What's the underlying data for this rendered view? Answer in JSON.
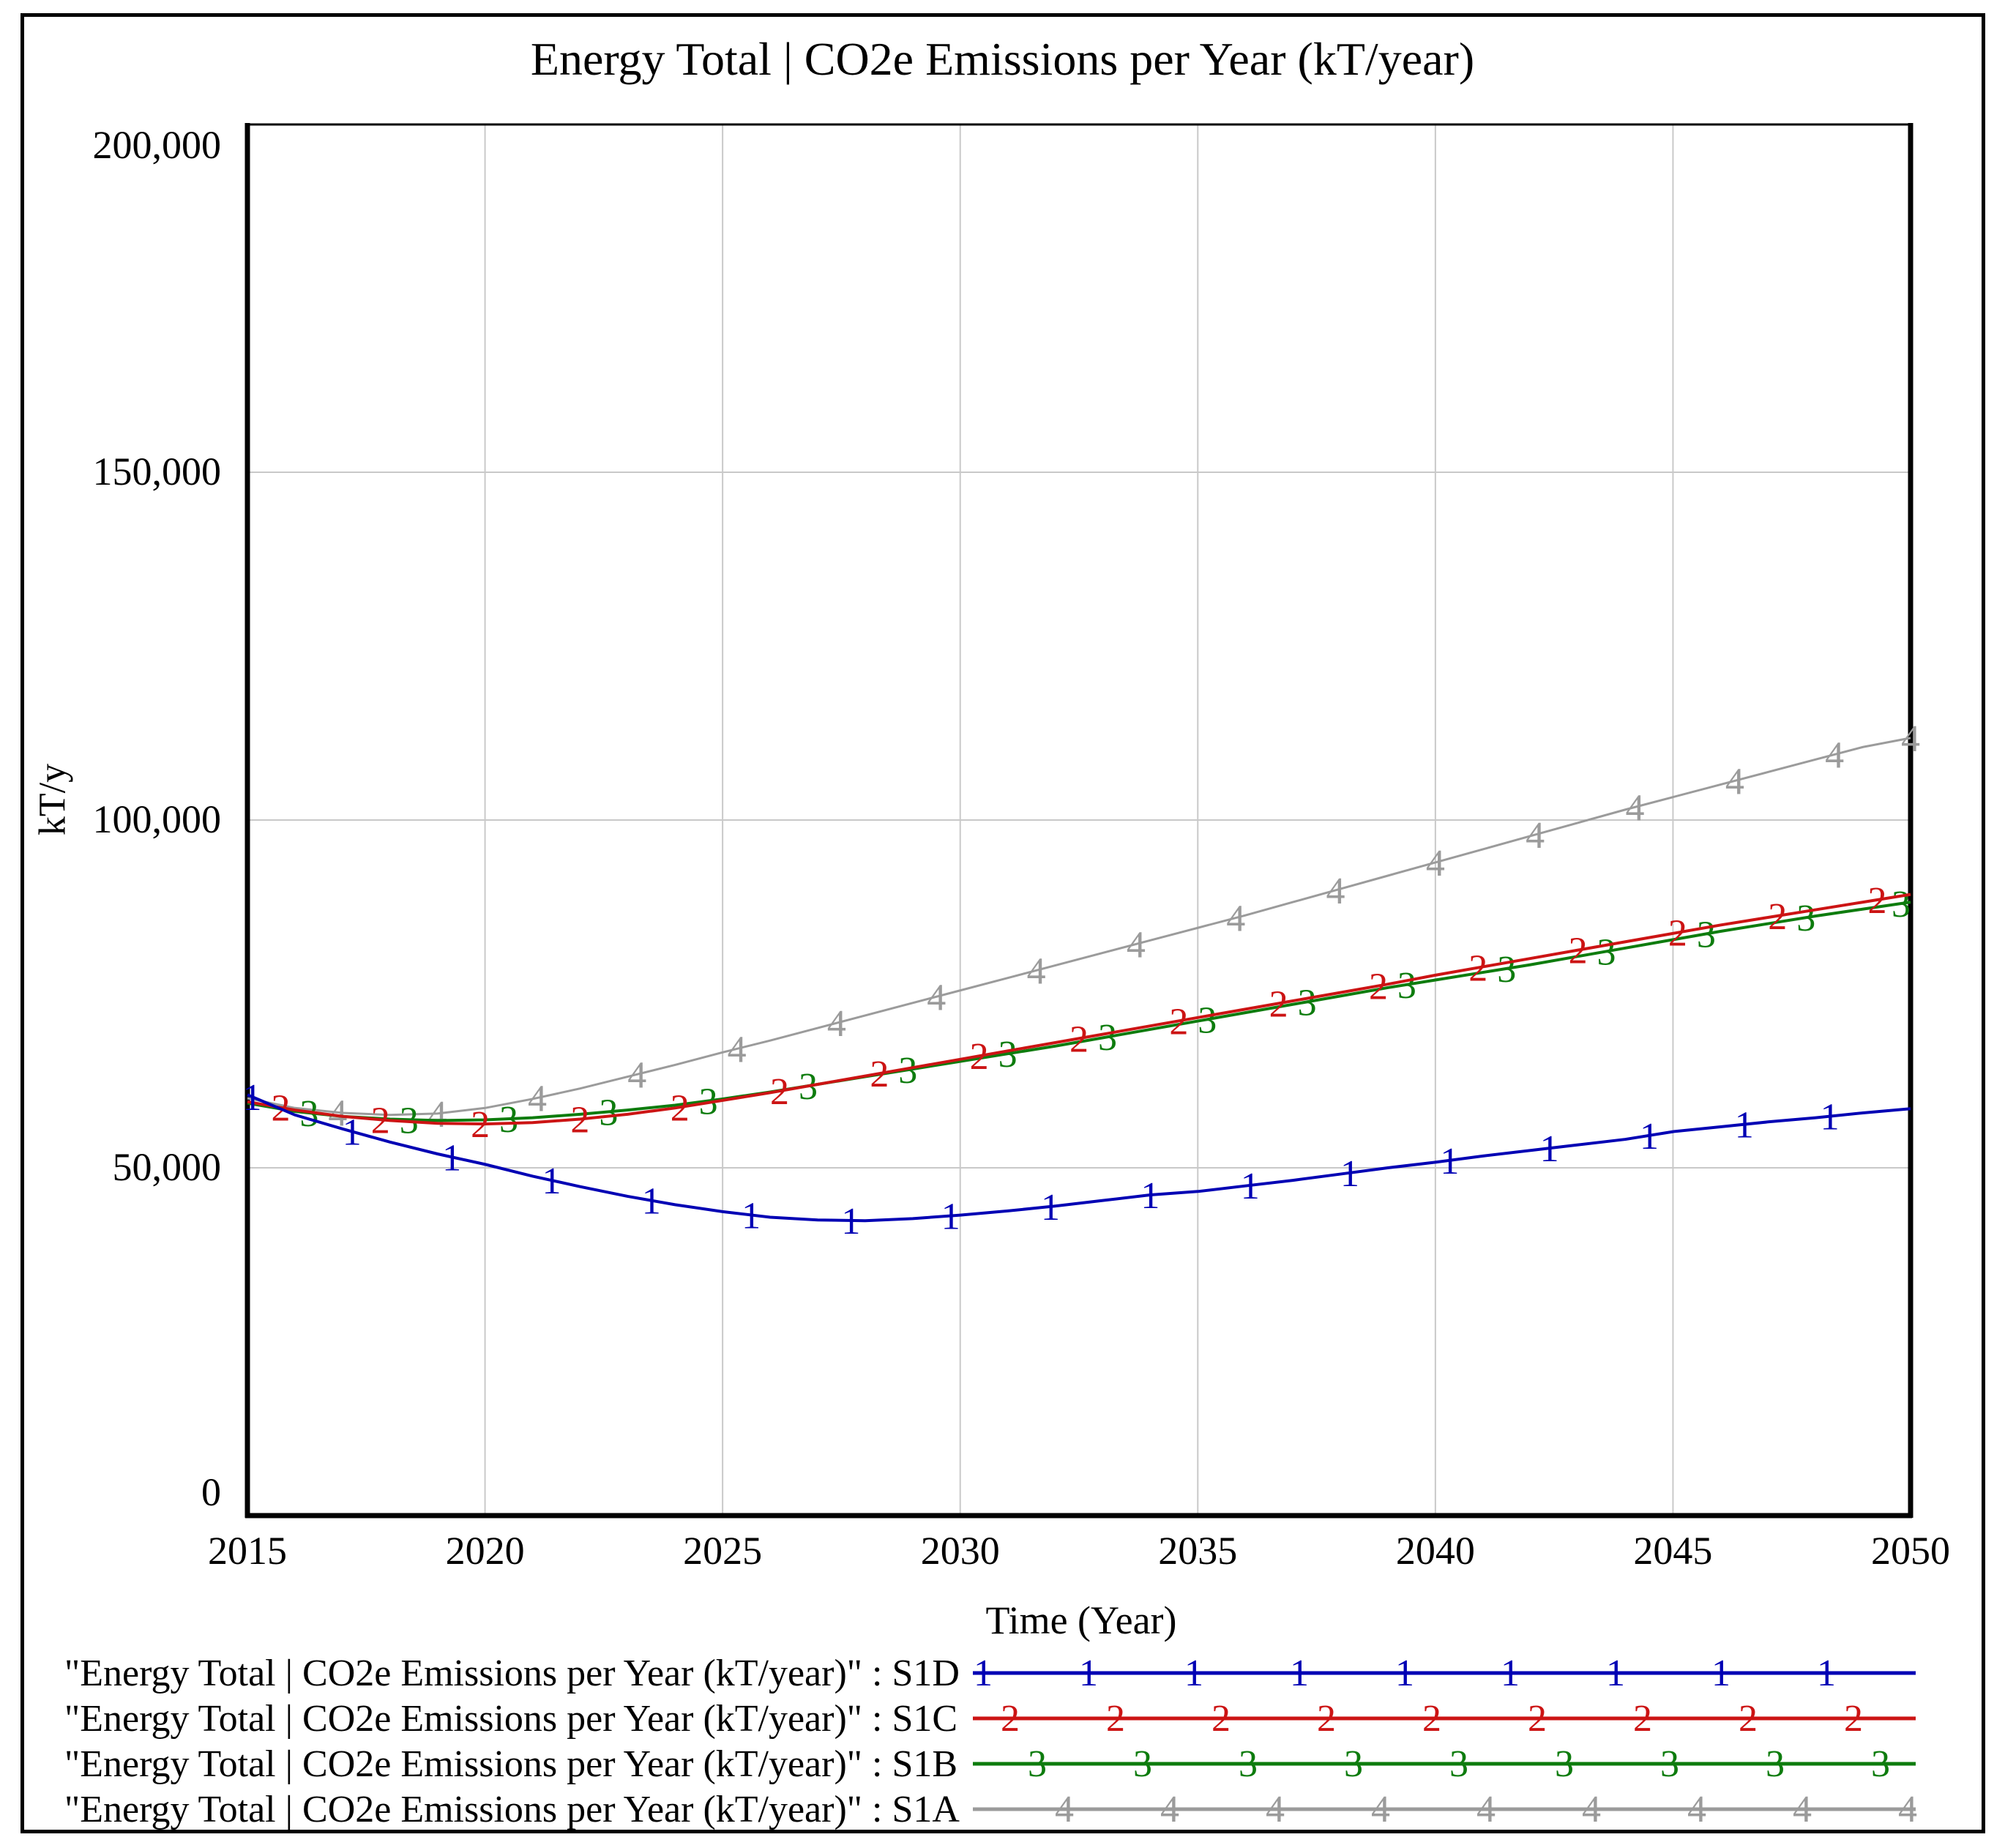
{
  "window": {
    "background_color": "#ffffff",
    "border_color": "#000000"
  },
  "chart_data": {
    "type": "line",
    "title": "Energy Total | CO2e Emissions per Year (kT/year)",
    "xlabel": "Time (Year)",
    "ylabel": "kT/y",
    "x_range": [
      2015,
      2050
    ],
    "y_range": [
      0,
      200000
    ],
    "x_ticks": [
      2015,
      2020,
      2025,
      2030,
      2035,
      2040,
      2045,
      2050
    ],
    "y_ticks": [
      0,
      50000,
      100000,
      150000,
      200000
    ],
    "y_tick_labels": [
      "0",
      "50,000",
      "100,000",
      "150,000",
      "200,000"
    ],
    "grid": true,
    "gridline_color": "#c9c9c9",
    "axis_color": "#000000",
    "legend_position": "bottom-left",
    "years": [
      2015,
      2016,
      2017,
      2018,
      2019,
      2020,
      2021,
      2022,
      2023,
      2024,
      2025,
      2026,
      2027,
      2028,
      2029,
      2030,
      2031,
      2032,
      2033,
      2034,
      2035,
      2036,
      2037,
      2038,
      2039,
      2040,
      2041,
      2042,
      2043,
      2044,
      2045,
      2046,
      2047,
      2048,
      2049,
      2050
    ],
    "series": [
      {
        "name": "\"Energy Total | CO2e Emissions per Year (kT/year)\" : S1D",
        "scenario": "S1D",
        "marker_digit": "1",
        "color": "#0000b4",
        "line_width": 4,
        "marker_years": [
          2015.1,
          2017.2,
          2019.3,
          2021.4,
          2023.5,
          2025.6,
          2027.7,
          2029.8,
          2031.9,
          2034.0,
          2036.1,
          2038.2,
          2040.3,
          2042.4,
          2044.5,
          2046.5,
          2048.3
        ],
        "values": [
          60500,
          57600,
          55600,
          53700,
          52000,
          50500,
          48800,
          47300,
          45900,
          44700,
          43700,
          42900,
          42500,
          42400,
          42700,
          43200,
          43800,
          44500,
          45300,
          46100,
          46600,
          47400,
          48200,
          49100,
          50000,
          50800,
          51700,
          52500,
          53300,
          54100,
          55200,
          55900,
          56600,
          57200,
          57900,
          58500
        ]
      },
      {
        "name": "\"Energy Total | CO2e Emissions per Year (kT/year)\" : S1C",
        "scenario": "S1C",
        "marker_digit": "2",
        "color": "#cc1414",
        "line_width": 4,
        "marker_years": [
          2015.7,
          2017.8,
          2019.9,
          2022.0,
          2024.1,
          2026.2,
          2028.3,
          2030.4,
          2032.5,
          2034.6,
          2036.7,
          2038.8,
          2040.9,
          2043.0,
          2045.1,
          2047.2,
          2049.3
        ],
        "values": [
          59500,
          58300,
          57400,
          56800,
          56400,
          56300,
          56500,
          57000,
          57700,
          58600,
          59700,
          60800,
          62000,
          63200,
          64400,
          65600,
          66800,
          68000,
          69200,
          70400,
          71600,
          72800,
          74000,
          75200,
          76400,
          77700,
          78900,
          80100,
          81300,
          82500,
          83700,
          84900,
          86000,
          87100,
          88200,
          89300
        ]
      },
      {
        "name": "\"Energy Total | CO2e Emissions per Year (kT/year)\" : S1B",
        "scenario": "S1B",
        "marker_digit": "3",
        "color": "#0e7c0e",
        "line_width": 4,
        "marker_years": [
          2016.3,
          2018.4,
          2020.5,
          2022.6,
          2024.7,
          2026.8,
          2028.9,
          2031.0,
          2033.1,
          2035.2,
          2037.3,
          2039.4,
          2041.5,
          2043.6,
          2045.7,
          2047.8,
          2049.8
        ],
        "values": [
          59300,
          58100,
          57400,
          57000,
          56800,
          56900,
          57200,
          57700,
          58300,
          59000,
          59900,
          60900,
          62000,
          63100,
          64200,
          65300,
          66400,
          67500,
          68700,
          69900,
          71100,
          72300,
          73500,
          74700,
          75900,
          77000,
          78100,
          79200,
          80400,
          81600,
          82800,
          84000,
          85100,
          86200,
          87200,
          88200
        ]
      },
      {
        "name": "\"Energy Total | CO2e Emissions per Year (kT/year)\" : S1A",
        "scenario": "S1A",
        "marker_digit": "4",
        "color": "#9b9b9b",
        "line_width": 3,
        "marker_years": [
          2016.9,
          2019.0,
          2021.1,
          2023.2,
          2025.3,
          2027.4,
          2029.5,
          2031.6,
          2033.7,
          2035.8,
          2037.9,
          2040.0,
          2042.1,
          2044.2,
          2046.3,
          2048.4,
          2050.0
        ],
        "values": [
          60000,
          58600,
          57900,
          57600,
          57800,
          58600,
          59900,
          61400,
          63100,
          64800,
          66600,
          68300,
          70100,
          71900,
          73700,
          75500,
          77300,
          79100,
          80900,
          82700,
          84500,
          86300,
          88200,
          90100,
          92000,
          93900,
          95800,
          97700,
          99600,
          101500,
          103300,
          105100,
          106900,
          108700,
          110500,
          111800
        ]
      }
    ],
    "legend_marker_count": 9
  }
}
